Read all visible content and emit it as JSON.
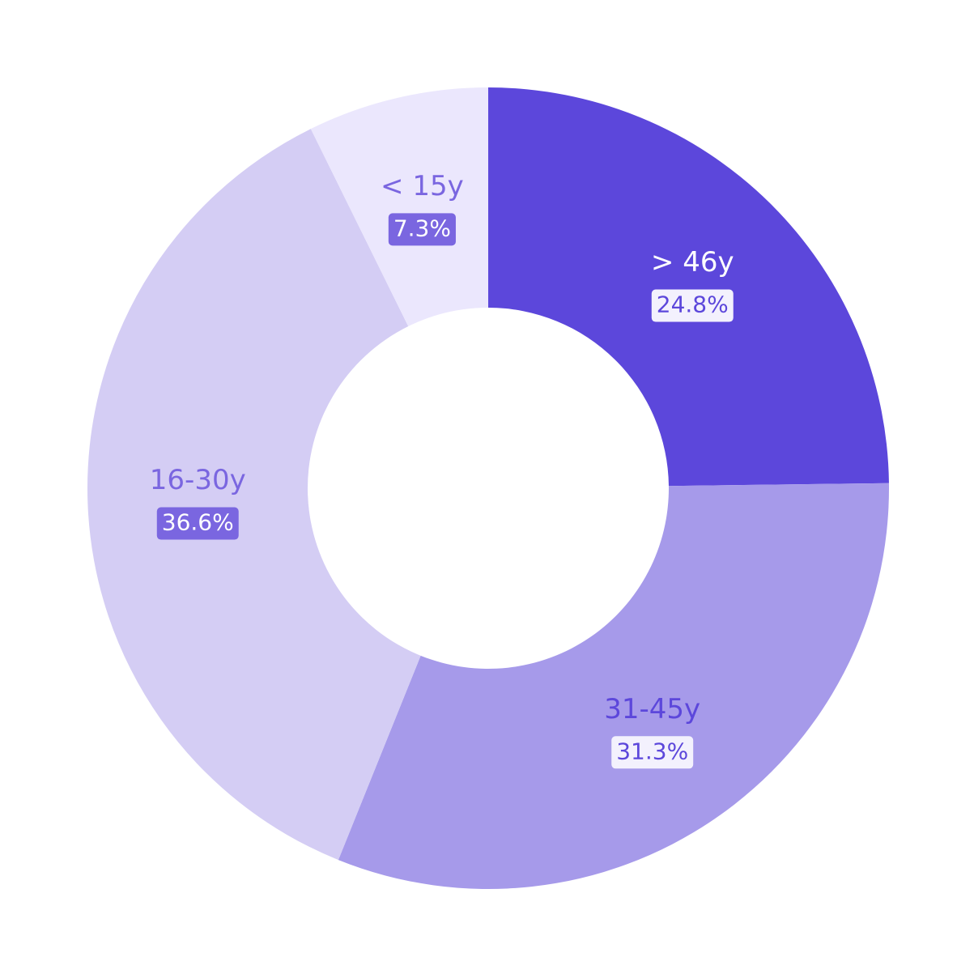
{
  "chart_data": {
    "type": "donut",
    "categories": [
      "> 46y",
      "31-45y",
      "16-30y",
      "< 15y"
    ],
    "values": [
      24.8,
      31.3,
      36.6,
      7.3
    ],
    "value_labels": [
      "24.8%",
      "31.3%",
      "36.6%",
      "7.3%"
    ],
    "colors": [
      "#5c47db",
      "#a69aea",
      "#d4cdf4",
      "#ebe7fd"
    ]
  }
}
